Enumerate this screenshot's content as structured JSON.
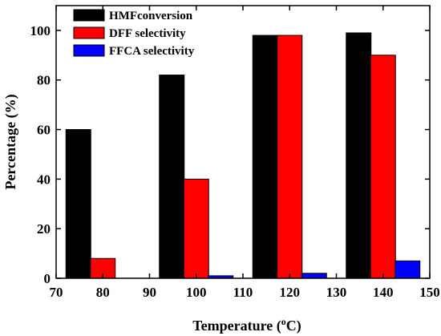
{
  "chart_data": {
    "type": "bar",
    "xlabel": "Temperature (°C)",
    "ylabel": "Percentage (%)",
    "xlim": [
      70,
      150
    ],
    "ylim": [
      0,
      110
    ],
    "xticks": [
      70,
      80,
      90,
      100,
      110,
      120,
      130,
      140,
      150
    ],
    "yticks": [
      0,
      20,
      40,
      60,
      80,
      100
    ],
    "x": [
      80,
      100,
      120,
      140
    ],
    "series": [
      {
        "name": "HMFconversion",
        "color": "#000000",
        "values": [
          60,
          82,
          98,
          99
        ]
      },
      {
        "name": "DFF selectivity",
        "color": "#ff0000",
        "values": [
          8,
          40,
          98,
          90
        ]
      },
      {
        "name": "FFCA selectivity",
        "color": "#0000ff",
        "values": [
          0,
          1,
          2,
          7
        ]
      }
    ],
    "legend_position": "top-left",
    "grid": false
  }
}
